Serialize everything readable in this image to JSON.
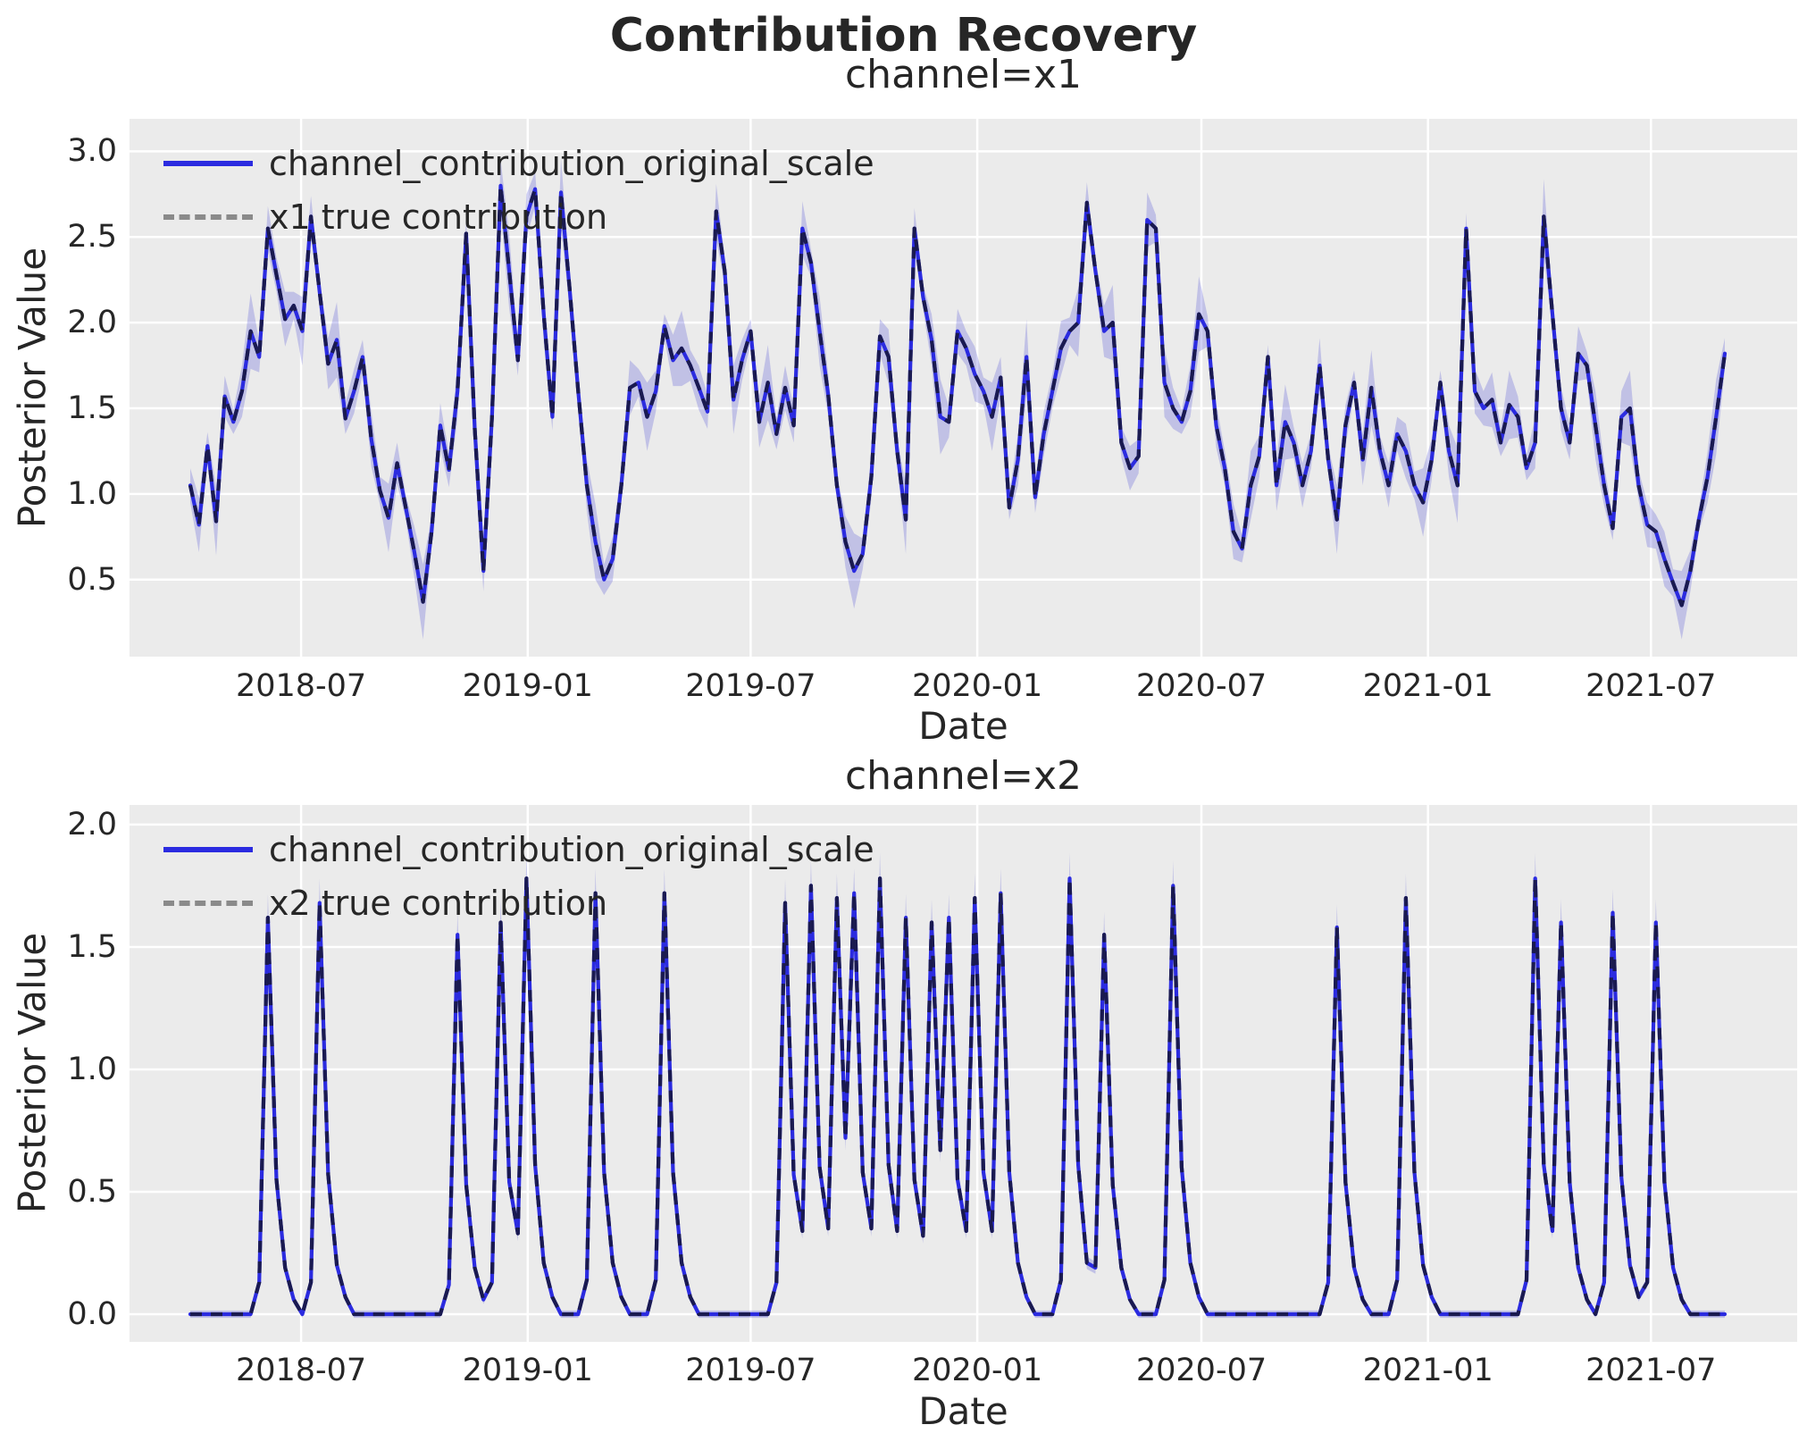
{
  "title": "Contribution Recovery",
  "style": {
    "figure_bg": "#ffffff",
    "axes_bg": "#ebebeb",
    "grid_color": "#ffffff",
    "posterior_line_color": "#2b2be0",
    "true_line_plot_color": "#1a1a50",
    "true_line_legend_color": "#8a8a8a",
    "band_color": "rgba(85,85,215,0.28)",
    "text_color": "#262626"
  },
  "chart_data": [
    {
      "type": "line",
      "title": "channel=x1",
      "xlabel": "Date",
      "ylabel": "Posterior Value",
      "legend": [
        {
          "label": "channel_contribution_original_scale",
          "style": "solid"
        },
        {
          "label": "x1 true contribution",
          "style": "dashed"
        }
      ],
      "x_start": "2018-04-02",
      "x_end": "2021-08-30",
      "freq": "weekly",
      "n_points": 179,
      "ylim": [
        0.05,
        3.19
      ],
      "grid": true,
      "legend_position": "upper-left",
      "y_ticks": [
        {
          "label": "3.0",
          "v": 3.0
        },
        {
          "label": "2.5",
          "v": 2.5
        },
        {
          "label": "2.0",
          "v": 2.0
        },
        {
          "label": "1.5",
          "v": 1.5
        },
        {
          "label": "1.0",
          "v": 1.0
        },
        {
          "label": "0.5",
          "v": 0.5
        }
      ],
      "x_ticks": [
        {
          "label": "2018-07",
          "week": 12.857
        },
        {
          "label": "2019-01",
          "week": 39.143
        },
        {
          "label": "2019-07",
          "week": 65.0
        },
        {
          "label": "2020-01",
          "week": 91.286
        },
        {
          "label": "2020-07",
          "week": 117.286
        },
        {
          "label": "2021-01",
          "week": 143.571
        },
        {
          "label": "2021-07",
          "week": 169.429
        }
      ],
      "true_series_equals_mean": true,
      "hdi_halfwidth_pattern": [
        0.1,
        0.16,
        0.08,
        0.2,
        0.12,
        0.07,
        0.15,
        0.22,
        0.09,
        0.13
      ],
      "series_mean": [
        1.05,
        0.82,
        1.28,
        0.84,
        1.57,
        1.42,
        1.6,
        1.95,
        1.8,
        2.55,
        2.28,
        2.02,
        2.1,
        1.95,
        2.62,
        2.18,
        1.76,
        1.9,
        1.44,
        1.6,
        1.8,
        1.32,
        1.02,
        0.86,
        1.18,
        0.92,
        0.66,
        0.37,
        0.78,
        1.4,
        1.14,
        1.6,
        2.52,
        1.38,
        0.55,
        1.45,
        2.8,
        2.3,
        1.78,
        2.62,
        2.78,
        2.05,
        1.45,
        2.76,
        2.2,
        1.6,
        1.05,
        0.72,
        0.5,
        0.62,
        1.05,
        1.62,
        1.65,
        1.45,
        1.6,
        1.98,
        1.78,
        1.85,
        1.75,
        1.62,
        1.48,
        2.65,
        2.3,
        1.55,
        1.78,
        1.95,
        1.42,
        1.65,
        1.35,
        1.62,
        1.4,
        2.55,
        2.35,
        1.95,
        1.58,
        1.05,
        0.72,
        0.55,
        0.65,
        1.1,
        1.92,
        1.8,
        1.25,
        0.85,
        2.55,
        2.15,
        1.9,
        1.45,
        1.42,
        1.95,
        1.85,
        1.7,
        1.6,
        1.45,
        1.68,
        0.92,
        1.2,
        1.8,
        0.98,
        1.35,
        1.6,
        1.85,
        1.95,
        2.0,
        2.7,
        2.3,
        1.95,
        2.0,
        1.3,
        1.15,
        1.22,
        2.6,
        2.55,
        1.65,
        1.5,
        1.42,
        1.6,
        2.05,
        1.95,
        1.4,
        1.15,
        0.78,
        0.68,
        1.05,
        1.22,
        1.8,
        1.05,
        1.42,
        1.3,
        1.05,
        1.25,
        1.75,
        1.2,
        0.85,
        1.4,
        1.65,
        1.2,
        1.62,
        1.25,
        1.05,
        1.35,
        1.25,
        1.05,
        0.95,
        1.2,
        1.65,
        1.25,
        1.05,
        2.55,
        1.6,
        1.5,
        1.55,
        1.3,
        1.52,
        1.45,
        1.15,
        1.3,
        2.62,
        2.05,
        1.5,
        1.3,
        1.82,
        1.75,
        1.4,
        1.05,
        0.8,
        1.45,
        1.5,
        1.05,
        0.82,
        0.78,
        0.62,
        0.48,
        0.35,
        0.55,
        0.85,
        1.1,
        1.45,
        1.82
      ]
    },
    {
      "type": "line",
      "title": "channel=x2",
      "xlabel": "Date",
      "ylabel": "Posterior Value",
      "legend": [
        {
          "label": "channel_contribution_original_scale",
          "style": "solid"
        },
        {
          "label": "x2 true contribution",
          "style": "dashed"
        }
      ],
      "x_start": "2018-04-02",
      "x_end": "2021-08-30",
      "freq": "weekly",
      "n_points": 179,
      "ylim": [
        -0.113,
        2.08
      ],
      "grid": true,
      "legend_position": "upper-left",
      "y_ticks": [
        {
          "label": "2.0",
          "v": 2.0
        },
        {
          "label": "1.5",
          "v": 1.5
        },
        {
          "label": "1.0",
          "v": 1.0
        },
        {
          "label": "0.5",
          "v": 0.5
        },
        {
          "label": "0.0",
          "v": 0.0
        }
      ],
      "x_ticks": [
        {
          "label": "2018-07",
          "week": 12.857
        },
        {
          "label": "2019-01",
          "week": 39.143
        },
        {
          "label": "2019-07",
          "week": 65.0
        },
        {
          "label": "2020-01",
          "week": 91.286
        },
        {
          "label": "2020-07",
          "week": 117.286
        },
        {
          "label": "2021-01",
          "week": 143.571
        },
        {
          "label": "2021-07",
          "week": 169.429
        }
      ],
      "true_series_equals_mean": true,
      "hdi_rule": {
        "base": 0.015,
        "per_value": 0.05
      },
      "series_mean": [
        0,
        0,
        0,
        0,
        0,
        0,
        0,
        0,
        0.13,
        1.62,
        0.55,
        0.19,
        0.06,
        0,
        0.13,
        1.68,
        0.57,
        0.2,
        0.07,
        0,
        0,
        0,
        0,
        0,
        0,
        0,
        0,
        0,
        0,
        0,
        0.12,
        1.55,
        0.53,
        0.19,
        0.06,
        0.13,
        1.6,
        0.54,
        0.33,
        1.78,
        0.61,
        0.21,
        0.07,
        0,
        0,
        0,
        0.14,
        1.72,
        0.58,
        0.21,
        0.07,
        0,
        0,
        0,
        0.14,
        1.72,
        0.58,
        0.21,
        0.07,
        0,
        0,
        0,
        0,
        0,
        0,
        0,
        0,
        0,
        0.13,
        1.68,
        0.57,
        0.34,
        1.75,
        0.6,
        0.35,
        1.7,
        0.72,
        1.72,
        0.58,
        0.35,
        1.78,
        0.61,
        0.34,
        1.62,
        0.55,
        0.32,
        1.6,
        0.67,
        1.62,
        0.55,
        0.34,
        1.7,
        0.58,
        0.34,
        1.72,
        0.58,
        0.21,
        0.07,
        0,
        0,
        0,
        0.14,
        1.78,
        0.61,
        0.21,
        0.19,
        1.55,
        0.53,
        0.19,
        0.06,
        0,
        0,
        0,
        0.14,
        1.75,
        0.6,
        0.21,
        0.07,
        0,
        0,
        0,
        0,
        0,
        0,
        0,
        0,
        0,
        0,
        0,
        0,
        0,
        0,
        0.13,
        1.58,
        0.54,
        0.19,
        0.06,
        0,
        0,
        0,
        0.14,
        1.7,
        0.58,
        0.2,
        0.07,
        0,
        0,
        0,
        0,
        0,
        0,
        0,
        0,
        0,
        0,
        0.14,
        1.78,
        0.61,
        0.34,
        1.6,
        0.54,
        0.19,
        0.06,
        0,
        0.13,
        1.64,
        0.56,
        0.2,
        0.07,
        0.13,
        1.6,
        0.54,
        0.19,
        0.06,
        0,
        0,
        0,
        0,
        0
      ]
    }
  ]
}
